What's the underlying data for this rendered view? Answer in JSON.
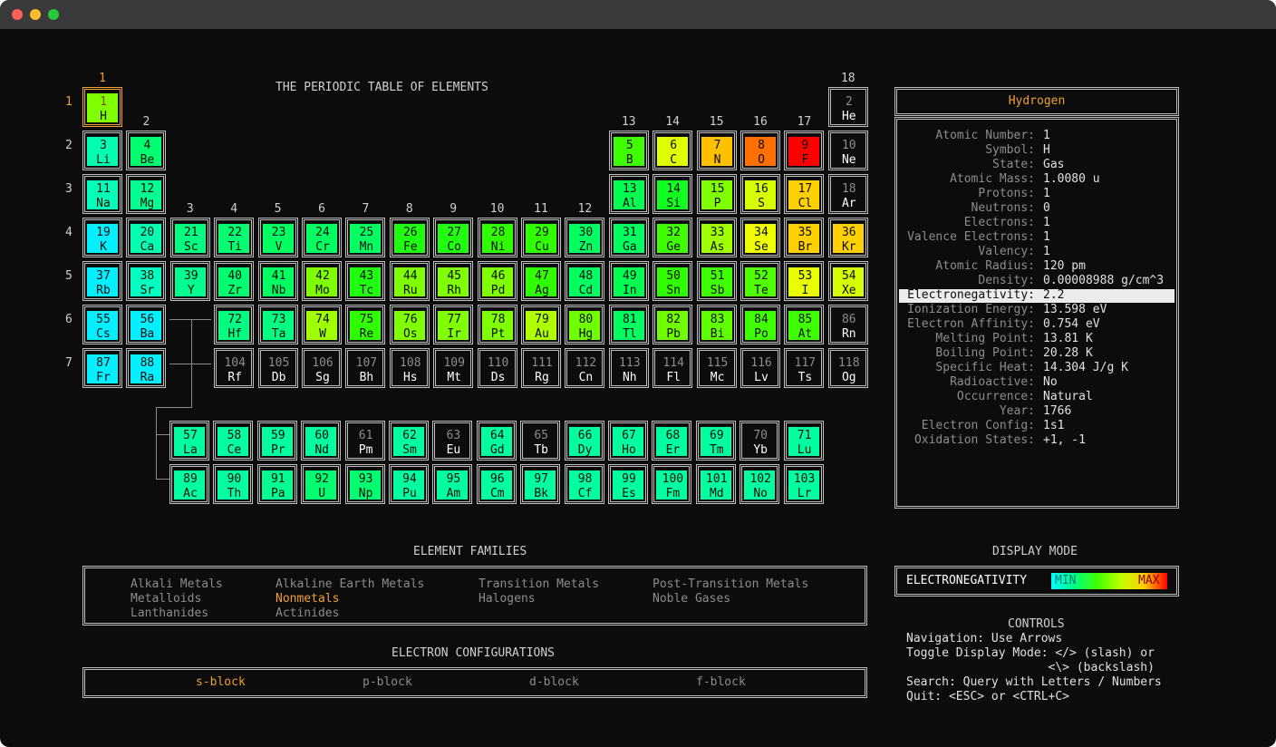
{
  "window": {
    "controls": [
      "close",
      "minimize",
      "maximize"
    ]
  },
  "title": "THE PERIODIC TABLE OF ELEMENTS",
  "group_numbers": [
    "1",
    "2",
    "3",
    "4",
    "5",
    "6",
    "7",
    "8",
    "9",
    "10",
    "11",
    "12",
    "13",
    "14",
    "15",
    "16",
    "17",
    "18"
  ],
  "period_numbers": [
    "1",
    "2",
    "3",
    "4",
    "5",
    "6",
    "7"
  ],
  "colors": {
    "highlight": "#f0a030",
    "bg": "#0c0c0c",
    "border": "#bfbfbf",
    "text": "#d0d0d0"
  },
  "elements": [
    {
      "n": "1",
      "s": "H",
      "c": "#7fff00",
      "sel": true
    },
    {
      "n": "2",
      "s": "He",
      "c": null
    },
    {
      "n": "3",
      "s": "Li",
      "c": "#00ffb0"
    },
    {
      "n": "4",
      "s": "Be",
      "c": "#00ff70"
    },
    {
      "n": "5",
      "s": "B",
      "c": "#40ff00"
    },
    {
      "n": "6",
      "s": "C",
      "c": "#e0ff00"
    },
    {
      "n": "7",
      "s": "N",
      "c": "#ffc000"
    },
    {
      "n": "8",
      "s": "O",
      "c": "#ff7000"
    },
    {
      "n": "9",
      "s": "F",
      "c": "#ff0000"
    },
    {
      "n": "10",
      "s": "Ne",
      "c": null
    },
    {
      "n": "11",
      "s": "Na",
      "c": "#00ffb8"
    },
    {
      "n": "12",
      "s": "Mg",
      "c": "#00ff90"
    },
    {
      "n": "13",
      "s": "Al",
      "c": "#00ff50"
    },
    {
      "n": "14",
      "s": "Si",
      "c": "#10ff20"
    },
    {
      "n": "15",
      "s": "P",
      "c": "#80ff00"
    },
    {
      "n": "16",
      "s": "S",
      "c": "#d8ff00"
    },
    {
      "n": "17",
      "s": "Cl",
      "c": "#ffd000"
    },
    {
      "n": "18",
      "s": "Ar",
      "c": null
    },
    {
      "n": "19",
      "s": "K",
      "c": "#00f0ff"
    },
    {
      "n": "20",
      "s": "Ca",
      "c": "#00ffb0"
    },
    {
      "n": "21",
      "s": "Sc",
      "c": "#00ff80"
    },
    {
      "n": "22",
      "s": "Ti",
      "c": "#00ff70"
    },
    {
      "n": "23",
      "s": "V",
      "c": "#00ff60"
    },
    {
      "n": "24",
      "s": "Cr",
      "c": "#00ff60"
    },
    {
      "n": "25",
      "s": "Mn",
      "c": "#00ff60"
    },
    {
      "n": "26",
      "s": "Fe",
      "c": "#20ff10"
    },
    {
      "n": "27",
      "s": "Co",
      "c": "#20ff10"
    },
    {
      "n": "28",
      "s": "Ni",
      "c": "#30ff00"
    },
    {
      "n": "29",
      "s": "Cu",
      "c": "#30ff00"
    },
    {
      "n": "30",
      "s": "Zn",
      "c": "#00ff60"
    },
    {
      "n": "31",
      "s": "Ga",
      "c": "#00ff60"
    },
    {
      "n": "32",
      "s": "Ge",
      "c": "#40ff00"
    },
    {
      "n": "33",
      "s": "As",
      "c": "#a0ff00"
    },
    {
      "n": "34",
      "s": "Se",
      "c": "#f0ff00"
    },
    {
      "n": "35",
      "s": "Br",
      "c": "#ffd000"
    },
    {
      "n": "36",
      "s": "Kr",
      "c": "#ffd000"
    },
    {
      "n": "37",
      "s": "Rb",
      "c": "#00f0ff"
    },
    {
      "n": "38",
      "s": "Sr",
      "c": "#00ffc0"
    },
    {
      "n": "39",
      "s": "Y",
      "c": "#00ff90"
    },
    {
      "n": "40",
      "s": "Zr",
      "c": "#00ff70"
    },
    {
      "n": "41",
      "s": "Nb",
      "c": "#00ff60"
    },
    {
      "n": "42",
      "s": "Mo",
      "c": "#80ff00"
    },
    {
      "n": "43",
      "s": "Tc",
      "c": "#20ff10"
    },
    {
      "n": "44",
      "s": "Ru",
      "c": "#80ff00"
    },
    {
      "n": "45",
      "s": "Rh",
      "c": "#80ff00"
    },
    {
      "n": "46",
      "s": "Pd",
      "c": "#80ff00"
    },
    {
      "n": "47",
      "s": "Ag",
      "c": "#30ff00"
    },
    {
      "n": "48",
      "s": "Cd",
      "c": "#00ff60"
    },
    {
      "n": "49",
      "s": "In",
      "c": "#00ff50"
    },
    {
      "n": "50",
      "s": "Sn",
      "c": "#30ff00"
    },
    {
      "n": "51",
      "s": "Sb",
      "c": "#40ff00"
    },
    {
      "n": "52",
      "s": "Te",
      "c": "#50ff00"
    },
    {
      "n": "53",
      "s": "I",
      "c": "#e8ff00"
    },
    {
      "n": "54",
      "s": "Xe",
      "c": "#d8ff00"
    },
    {
      "n": "55",
      "s": "Cs",
      "c": "#00f0ff"
    },
    {
      "n": "56",
      "s": "Ba",
      "c": "#00f0ff"
    },
    {
      "n": "72",
      "s": "Hf",
      "c": "#00ff80"
    },
    {
      "n": "73",
      "s": "Ta",
      "c": "#00ff80"
    },
    {
      "n": "74",
      "s": "W",
      "c": "#a0ff00"
    },
    {
      "n": "75",
      "s": "Re",
      "c": "#30ff00"
    },
    {
      "n": "76",
      "s": "Os",
      "c": "#80ff00"
    },
    {
      "n": "77",
      "s": "Ir",
      "c": "#80ff00"
    },
    {
      "n": "78",
      "s": "Pt",
      "c": "#80ff00"
    },
    {
      "n": "79",
      "s": "Au",
      "c": "#b0ff00"
    },
    {
      "n": "80",
      "s": "Hg",
      "c": "#70ff00"
    },
    {
      "n": "81",
      "s": "Tl",
      "c": "#00ff60"
    },
    {
      "n": "82",
      "s": "Pb",
      "c": "#70ff00"
    },
    {
      "n": "83",
      "s": "Bi",
      "c": "#60ff00"
    },
    {
      "n": "84",
      "s": "Po",
      "c": "#40ff00"
    },
    {
      "n": "85",
      "s": "At",
      "c": "#40ff00"
    },
    {
      "n": "86",
      "s": "Rn",
      "c": null
    },
    {
      "n": "87",
      "s": "Fr",
      "c": "#00f0ff"
    },
    {
      "n": "88",
      "s": "Ra",
      "c": "#00f0ff"
    },
    {
      "n": "104",
      "s": "Rf",
      "c": null
    },
    {
      "n": "105",
      "s": "Db",
      "c": null
    },
    {
      "n": "106",
      "s": "Sg",
      "c": null
    },
    {
      "n": "107",
      "s": "Bh",
      "c": null
    },
    {
      "n": "108",
      "s": "Hs",
      "c": null
    },
    {
      "n": "109",
      "s": "Mt",
      "c": null
    },
    {
      "n": "110",
      "s": "Ds",
      "c": null
    },
    {
      "n": "111",
      "s": "Rg",
      "c": null
    },
    {
      "n": "112",
      "s": "Cn",
      "c": null
    },
    {
      "n": "113",
      "s": "Nh",
      "c": null
    },
    {
      "n": "114",
      "s": "Fl",
      "c": null
    },
    {
      "n": "115",
      "s": "Mc",
      "c": null
    },
    {
      "n": "116",
      "s": "Lv",
      "c": null
    },
    {
      "n": "117",
      "s": "Ts",
      "c": null
    },
    {
      "n": "118",
      "s": "Og",
      "c": null
    },
    {
      "n": "57",
      "s": "La",
      "c": "#00ffa0"
    },
    {
      "n": "58",
      "s": "Ce",
      "c": "#00ffa0"
    },
    {
      "n": "59",
      "s": "Pr",
      "c": "#00ffa0"
    },
    {
      "n": "60",
      "s": "Nd",
      "c": "#00ffa0"
    },
    {
      "n": "61",
      "s": "Pm",
      "c": null
    },
    {
      "n": "62",
      "s": "Sm",
      "c": "#00ffa0"
    },
    {
      "n": "63",
      "s": "Eu",
      "c": null
    },
    {
      "n": "64",
      "s": "Gd",
      "c": "#00ffa0"
    },
    {
      "n": "65",
      "s": "Tb",
      "c": null
    },
    {
      "n": "66",
      "s": "Dy",
      "c": "#00ffa0"
    },
    {
      "n": "67",
      "s": "Ho",
      "c": "#00ffa0"
    },
    {
      "n": "68",
      "s": "Er",
      "c": "#00ffa0"
    },
    {
      "n": "69",
      "s": "Tm",
      "c": "#00ffa0"
    },
    {
      "n": "70",
      "s": "Yb",
      "c": null
    },
    {
      "n": "71",
      "s": "Lu",
      "c": "#00ffa0"
    },
    {
      "n": "89",
      "s": "Ac",
      "c": "#00ffa0"
    },
    {
      "n": "90",
      "s": "Th",
      "c": "#00ffa0"
    },
    {
      "n": "91",
      "s": "Pa",
      "c": "#00ff90"
    },
    {
      "n": "92",
      "s": "U",
      "c": "#00ff70"
    },
    {
      "n": "93",
      "s": "Np",
      "c": "#00ff70"
    },
    {
      "n": "94",
      "s": "Pu",
      "c": "#00ffa0"
    },
    {
      "n": "95",
      "s": "Am",
      "c": "#00ffa0"
    },
    {
      "n": "96",
      "s": "Cm",
      "c": "#00ffa0"
    },
    {
      "n": "97",
      "s": "Bk",
      "c": "#00ffa0"
    },
    {
      "n": "98",
      "s": "Cf",
      "c": "#00ffa0"
    },
    {
      "n": "99",
      "s": "Es",
      "c": "#00ffa0"
    },
    {
      "n": "100",
      "s": "Fm",
      "c": "#00ffa0"
    },
    {
      "n": "101",
      "s": "Md",
      "c": "#00ffa0"
    },
    {
      "n": "102",
      "s": "No",
      "c": "#00ffa0"
    },
    {
      "n": "103",
      "s": "Lr",
      "c": "#00ffa0"
    }
  ],
  "details": {
    "name": "Hydrogen",
    "rows": [
      {
        "label": "Atomic Number:",
        "value": "1"
      },
      {
        "label": "Symbol:",
        "value": "H"
      },
      {
        "label": "State:",
        "value": "Gas"
      },
      {
        "label": "Atomic Mass:",
        "value": "1.0080 u"
      },
      {
        "label": "Protons:",
        "value": "1"
      },
      {
        "label": "Neutrons:",
        "value": "0"
      },
      {
        "label": "Electrons:",
        "value": "1"
      },
      {
        "label": "Valence Electrons:",
        "value": "1"
      },
      {
        "label": "Valency:",
        "value": "1"
      },
      {
        "label": "Atomic Radius:",
        "value": "120 pm"
      },
      {
        "label": "Density:",
        "value": "0.00008988 g/cm^3"
      },
      {
        "label": "Electronegativity:",
        "value": "2.2",
        "highlight": true
      },
      {
        "label": "Ionization Energy:",
        "value": "13.598 eV"
      },
      {
        "label": "Electron Affinity:",
        "value": "0.754 eV"
      },
      {
        "label": "Melting Point:",
        "value": "13.81 K"
      },
      {
        "label": "Boiling Point:",
        "value": "20.28 K"
      },
      {
        "label": "Specific Heat:",
        "value": "14.304 J/g K"
      },
      {
        "label": "Radioactive:",
        "value": "No"
      },
      {
        "label": "Occurrence:",
        "value": "Natural"
      },
      {
        "label": "Year:",
        "value": "1766"
      },
      {
        "label": "Electron Config:",
        "value": "1s1"
      },
      {
        "label": "Oxidation States:",
        "value": "+1, -1"
      }
    ]
  },
  "families": {
    "heading": "ELEMENT FAMILIES",
    "items": [
      {
        "label": "Alkali Metals",
        "active": false
      },
      {
        "label": "Alkaline Earth Metals",
        "active": false
      },
      {
        "label": "Transition Metals",
        "active": false
      },
      {
        "label": "Post-Transition Metals",
        "active": false
      },
      {
        "label": "Metalloids",
        "active": false
      },
      {
        "label": "Nonmetals",
        "active": true
      },
      {
        "label": "Halogens",
        "active": false
      },
      {
        "label": "Noble Gases",
        "active": false
      },
      {
        "label": "Lanthanides",
        "active": false
      },
      {
        "label": "Actinides",
        "active": false
      }
    ]
  },
  "configurations": {
    "heading": "ELECTRON CONFIGURATIONS",
    "items": [
      {
        "label": "s-block",
        "active": true
      },
      {
        "label": "p-block",
        "active": false
      },
      {
        "label": "d-block",
        "active": false
      },
      {
        "label": "f-block",
        "active": false
      }
    ]
  },
  "display_mode": {
    "heading": "DISPLAY MODE",
    "mode": "ELECTRONEGATIVITY",
    "min_label": "MIN",
    "max_label": "MAX",
    "gradient": [
      "#00ffff",
      "#00ff80",
      "#40ff00",
      "#c0ff00",
      "#ffd000",
      "#ff0000"
    ]
  },
  "controls": {
    "heading": "CONTROLS",
    "lines": [
      "Navigation: Use Arrows",
      "Toggle Display Mode: </> (slash) or",
      "                    <\\> (backslash)",
      "Search: Query with Letters / Numbers",
      "Quit: <ESC> or <CTRL+C>"
    ]
  }
}
